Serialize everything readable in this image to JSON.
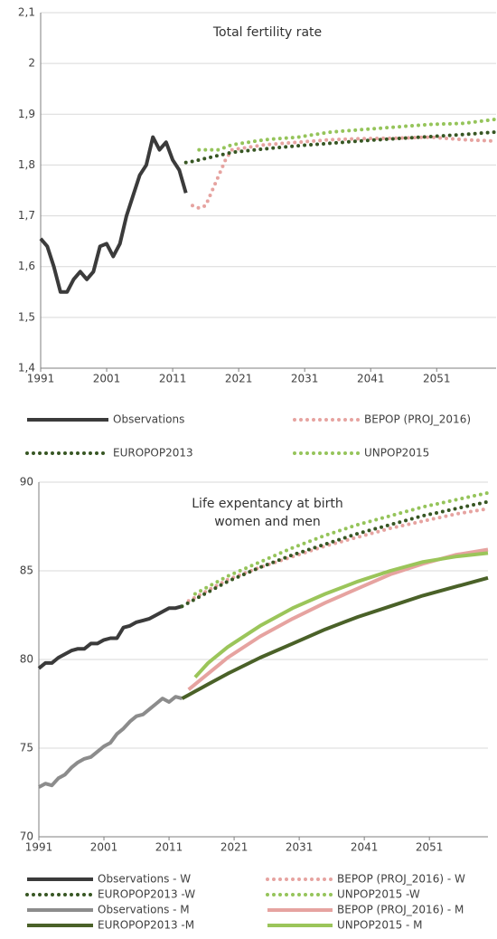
{
  "chart_data": [
    {
      "type": "line",
      "title": [
        "Total fertility rate"
      ],
      "x": [
        1991,
        1992,
        1993,
        1994,
        1995,
        1996,
        1997,
        1998,
        1999,
        2000,
        2001,
        2002,
        2003,
        2004,
        2005,
        2006,
        2007,
        2008,
        2009,
        2010,
        2011,
        2012,
        2013,
        2014,
        2015,
        2016,
        2017,
        2018,
        2019,
        2020,
        2025,
        2030,
        2035,
        2040,
        2045,
        2050,
        2055,
        2060
      ],
      "xlim": [
        1991,
        2060
      ],
      "xticks": [
        1991,
        2001,
        2011,
        2021,
        2031,
        2041,
        2051
      ],
      "ylim": [
        1.4,
        2.1
      ],
      "yticks": [
        {
          "value": 1.4,
          "label": "1,4"
        },
        {
          "value": 1.5,
          "label": "1,5"
        },
        {
          "value": 1.6,
          "label": "1,6"
        },
        {
          "value": 1.7,
          "label": "1,7"
        },
        {
          "value": 1.8,
          "label": "1,8"
        },
        {
          "value": 1.9,
          "label": "1,9"
        },
        2,
        {
          "value": 2.1,
          "label": "2,1"
        }
      ],
      "grid": true,
      "legend": "bottom",
      "series": [
        {
          "name": "Observations",
          "color": "#3b3b3b",
          "line_style": "solid",
          "values": [
            1.655,
            1.64,
            1.6,
            1.55,
            1.55,
            1.575,
            1.59,
            1.575,
            1.59,
            1.64,
            1.645,
            1.62,
            1.645,
            1.7,
            1.74,
            1.78,
            1.8,
            1.855,
            1.83,
            1.845,
            1.81,
            1.79,
            1.745,
            null,
            null,
            null,
            null,
            null,
            null,
            null,
            null,
            null,
            null,
            null,
            null,
            null,
            null,
            null
          ]
        },
        {
          "name": "BEPOP (PROJ_2016)",
          "color": "#e6a3a0",
          "line_style": "dotted",
          "values": [
            null,
            null,
            null,
            null,
            null,
            null,
            null,
            null,
            null,
            null,
            null,
            null,
            null,
            null,
            null,
            null,
            null,
            null,
            null,
            null,
            null,
            null,
            null,
            1.72,
            1.715,
            1.72,
            1.75,
            1.78,
            1.81,
            1.83,
            1.84,
            1.845,
            1.85,
            1.852,
            1.853,
            1.855,
            1.85,
            1.847
          ]
        },
        {
          "name": "EUROPOP2013",
          "color": "#375623",
          "line_style": "dotted",
          "values": [
            null,
            null,
            null,
            null,
            null,
            null,
            null,
            null,
            null,
            null,
            null,
            null,
            null,
            null,
            null,
            null,
            null,
            null,
            null,
            null,
            null,
            null,
            1.805,
            1.807,
            1.81,
            1.813,
            1.816,
            1.819,
            1.822,
            1.825,
            1.832,
            1.838,
            1.843,
            1.848,
            1.852,
            1.856,
            1.86,
            1.865
          ]
        },
        {
          "name": "UNPOP2015",
          "color": "#95c45a",
          "line_style": "dotted",
          "values": [
            null,
            null,
            null,
            null,
            null,
            null,
            null,
            null,
            null,
            null,
            null,
            null,
            null,
            null,
            null,
            null,
            null,
            null,
            null,
            null,
            null,
            null,
            null,
            null,
            1.83,
            1.83,
            1.83,
            1.83,
            1.835,
            1.84,
            1.85,
            1.855,
            1.865,
            1.87,
            1.875,
            1.88,
            1.882,
            1.89
          ]
        }
      ]
    },
    {
      "type": "line",
      "title": [
        "Life expentancy at birth",
        "women and men"
      ],
      "x": [
        1991,
        1992,
        1993,
        1994,
        1995,
        1996,
        1997,
        1998,
        1999,
        2000,
        2001,
        2002,
        2003,
        2004,
        2005,
        2006,
        2007,
        2008,
        2009,
        2010,
        2011,
        2012,
        2013,
        2014,
        2015,
        2016,
        2017,
        2018,
        2019,
        2020,
        2025,
        2030,
        2035,
        2040,
        2045,
        2050,
        2055,
        2060
      ],
      "xlim": [
        1991,
        2060
      ],
      "xticks": [
        1991,
        2001,
        2011,
        2021,
        2031,
        2041,
        2051
      ],
      "ylim": [
        70,
        90
      ],
      "yticks": [
        70,
        75,
        80,
        85,
        90
      ],
      "grid": true,
      "legend": "bottom",
      "series": [
        {
          "name": "Observations - W",
          "color": "#3b3b3b",
          "line_style": "solid",
          "values": [
            79.5,
            79.8,
            79.8,
            80.1,
            80.3,
            80.5,
            80.6,
            80.6,
            80.9,
            80.9,
            81.1,
            81.2,
            81.2,
            81.8,
            81.9,
            82.1,
            82.2,
            82.3,
            82.5,
            82.7,
            82.9,
            82.9,
            83.0,
            null,
            null,
            null,
            null,
            null,
            null,
            null,
            null,
            null,
            null,
            null,
            null,
            null,
            null,
            null
          ]
        },
        {
          "name": "BEPOP (PROJ_2016) - W",
          "color": "#e6a3a0",
          "line_style": "dotted",
          "values": [
            null,
            null,
            null,
            null,
            null,
            null,
            null,
            null,
            null,
            null,
            null,
            null,
            null,
            null,
            null,
            null,
            null,
            null,
            null,
            null,
            null,
            null,
            null,
            83.3,
            83.5,
            83.7,
            83.9,
            84.1,
            84.3,
            84.5,
            85.2,
            85.8,
            86.4,
            86.9,
            87.4,
            87.8,
            88.2,
            88.5
          ]
        },
        {
          "name": "EUROPOP2013 -W",
          "color": "#375623",
          "line_style": "dotted",
          "values": [
            null,
            null,
            null,
            null,
            null,
            null,
            null,
            null,
            null,
            null,
            null,
            null,
            null,
            null,
            null,
            null,
            null,
            null,
            null,
            null,
            null,
            null,
            83.0,
            83.2,
            83.4,
            83.6,
            83.8,
            84.0,
            84.2,
            84.4,
            85.2,
            85.9,
            86.5,
            87.1,
            87.6,
            88.1,
            88.5,
            88.9
          ]
        },
        {
          "name": "UNPOP2015 -W",
          "color": "#95c45a",
          "line_style": "dotted",
          "values": [
            null,
            null,
            null,
            null,
            null,
            null,
            null,
            null,
            null,
            null,
            null,
            null,
            null,
            null,
            null,
            null,
            null,
            null,
            null,
            null,
            null,
            null,
            null,
            null,
            83.7,
            83.9,
            84.1,
            84.3,
            84.5,
            84.7,
            85.5,
            86.3,
            87.0,
            87.6,
            88.1,
            88.6,
            89.0,
            89.4
          ]
        },
        {
          "name": "Observations - M",
          "color": "#8c8c8c",
          "line_style": "solid",
          "values": [
            72.8,
            73.0,
            72.9,
            73.3,
            73.5,
            73.9,
            74.2,
            74.4,
            74.5,
            74.8,
            75.1,
            75.3,
            75.8,
            76.1,
            76.5,
            76.8,
            76.9,
            77.2,
            77.5,
            77.8,
            77.6,
            77.9,
            77.8,
            null,
            null,
            null,
            null,
            null,
            null,
            null,
            null,
            null,
            null,
            null,
            null,
            null,
            null,
            null
          ]
        },
        {
          "name": "BEPOP (PROJ_2016) - M",
          "color": "#e6a3a0",
          "line_style": "solid",
          "values": [
            null,
            null,
            null,
            null,
            null,
            null,
            null,
            null,
            null,
            null,
            null,
            null,
            null,
            null,
            null,
            null,
            null,
            null,
            null,
            null,
            null,
            null,
            null,
            78.3,
            78.6,
            78.9,
            79.2,
            79.5,
            79.8,
            80.1,
            81.3,
            82.3,
            83.2,
            84.0,
            84.8,
            85.4,
            85.9,
            86.2
          ]
        },
        {
          "name": "EUROPOP2013 -M",
          "color": "#4a6128",
          "line_style": "solid",
          "values": [
            null,
            null,
            null,
            null,
            null,
            null,
            null,
            null,
            null,
            null,
            null,
            null,
            null,
            null,
            null,
            null,
            null,
            null,
            null,
            null,
            null,
            null,
            77.8,
            78.0,
            78.2,
            78.4,
            78.6,
            78.8,
            79.0,
            79.2,
            80.1,
            80.9,
            81.7,
            82.4,
            83.0,
            83.6,
            84.1,
            84.6
          ]
        },
        {
          "name": "UNPOP2015 - M",
          "color": "#9bc55a",
          "line_style": "solid",
          "values": [
            null,
            null,
            null,
            null,
            null,
            null,
            null,
            null,
            null,
            null,
            null,
            null,
            null,
            null,
            null,
            null,
            null,
            null,
            null,
            null,
            null,
            null,
            null,
            null,
            79.0,
            79.4,
            79.8,
            80.1,
            80.4,
            80.7,
            81.9,
            82.9,
            83.7,
            84.4,
            85.0,
            85.5,
            85.8,
            86.0
          ]
        }
      ]
    }
  ]
}
